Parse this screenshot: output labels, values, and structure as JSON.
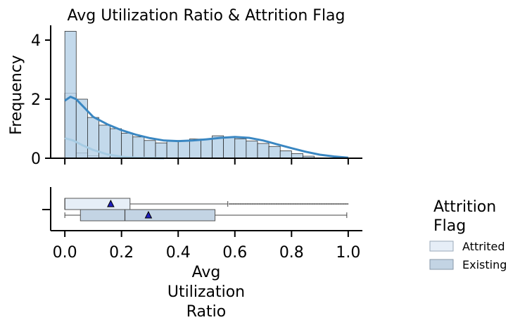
{
  "chart_data": {
    "type": "histogram",
    "title": "Avg Utilization Ratio & Attrition Flag",
    "ylabel": "Frequency",
    "xlabel_lines": [
      "Avg",
      "Utilization",
      "Ratio"
    ],
    "xlim": [
      -0.05,
      1.05
    ],
    "ylim": [
      0,
      4.5
    ],
    "x_ticks": [
      0.0,
      0.2,
      0.4,
      0.6,
      0.8,
      1.0
    ],
    "x_tick_labels": [
      "0.0",
      "0.2",
      "0.4",
      "0.6",
      "0.8",
      "1.0"
    ],
    "y_ticks": [
      0,
      2,
      4
    ],
    "y_tick_labels": [
      "0",
      "2",
      "4"
    ],
    "bins": [
      0.0,
      0.04,
      0.08,
      0.12,
      0.16,
      0.2,
      0.24,
      0.28,
      0.32,
      0.36,
      0.4,
      0.44,
      0.48,
      0.52,
      0.56,
      0.6,
      0.64,
      0.68,
      0.72,
      0.76,
      0.8,
      0.84,
      0.88,
      0.92,
      0.96,
      1.0
    ],
    "series": [
      {
        "name": "Attrited",
        "color": "#e6eef7",
        "kde_color": "#a6cbe3",
        "counts": [
          2.2,
          0.18,
          0.08,
          0.04,
          0.02,
          0.02,
          0.02,
          0.01,
          0.01,
          0.01,
          0.01,
          0.01,
          0.01,
          0.01,
          0.01,
          0.01,
          0.01,
          0.01,
          0.01,
          0.01,
          0.01,
          0.01,
          0.01,
          0.01,
          0.01
        ],
        "kde": [
          [
            0.0,
            0.68
          ],
          [
            0.03,
            0.6
          ],
          [
            0.06,
            0.45
          ],
          [
            0.1,
            0.28
          ],
          [
            0.15,
            0.13
          ],
          [
            0.2,
            0.05
          ],
          [
            0.25,
            0.02
          ],
          [
            0.3,
            0.01
          ],
          [
            0.35,
            0.0
          ]
        ],
        "box": {
          "min": 0.0,
          "q1": 0.0,
          "median": 0.0,
          "q3": 0.23,
          "whisker_high": 0.575,
          "mean": 0.162,
          "outliers_range": [
            0.58,
            0.999
          ]
        }
      },
      {
        "name": "Existing",
        "color": "#b4cfe6",
        "kde_color": "#3a87c2",
        "counts": [
          4.3,
          2.0,
          1.38,
          1.12,
          1.0,
          0.85,
          0.72,
          0.6,
          0.52,
          0.58,
          0.6,
          0.65,
          0.65,
          0.76,
          0.72,
          0.66,
          0.58,
          0.5,
          0.4,
          0.25,
          0.16,
          0.07,
          0.0,
          0.0,
          0.0
        ],
        "kde": [
          [
            0.0,
            1.95
          ],
          [
            0.02,
            2.08
          ],
          [
            0.04,
            2.0
          ],
          [
            0.07,
            1.7
          ],
          [
            0.1,
            1.4
          ],
          [
            0.15,
            1.15
          ],
          [
            0.2,
            0.95
          ],
          [
            0.25,
            0.8
          ],
          [
            0.3,
            0.68
          ],
          [
            0.35,
            0.6
          ],
          [
            0.4,
            0.58
          ],
          [
            0.45,
            0.6
          ],
          [
            0.5,
            0.64
          ],
          [
            0.55,
            0.69
          ],
          [
            0.6,
            0.72
          ],
          [
            0.65,
            0.69
          ],
          [
            0.7,
            0.6
          ],
          [
            0.75,
            0.47
          ],
          [
            0.8,
            0.34
          ],
          [
            0.85,
            0.22
          ],
          [
            0.9,
            0.12
          ],
          [
            0.95,
            0.06
          ],
          [
            1.0,
            0.02
          ]
        ],
        "box": {
          "min": 0.0,
          "q1": 0.055,
          "median": 0.212,
          "q3": 0.53,
          "whisker_high": 0.995,
          "mean": 0.295
        }
      }
    ],
    "legend": {
      "title_lines": [
        "Attrition",
        "Flag"
      ],
      "placement": "right-outside",
      "entries": [
        {
          "label": "Attrited",
          "color": "#e6eef7"
        },
        {
          "label": "Existing",
          "color": "#c3d4e4"
        }
      ]
    },
    "boxplot_y_tick": "–",
    "grid": false
  }
}
